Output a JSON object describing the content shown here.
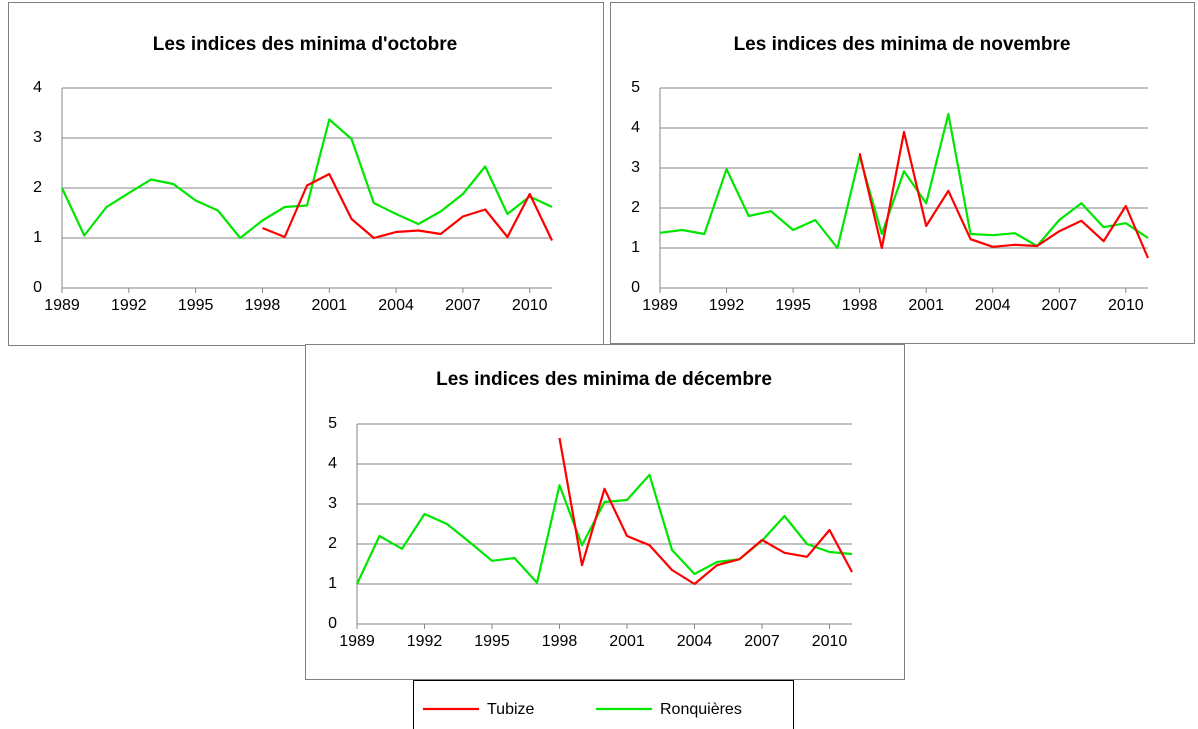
{
  "chart_data": [
    {
      "type": "line",
      "title": "Les indices des minima d'octobre",
      "x": [
        1989,
        1990,
        1991,
        1992,
        1993,
        1994,
        1995,
        1996,
        1997,
        1998,
        1999,
        2000,
        2001,
        2002,
        2003,
        2004,
        2005,
        2006,
        2007,
        2008,
        2009,
        2010,
        2011
      ],
      "xlim": [
        1989,
        2011
      ],
      "xticks": [
        1989,
        1992,
        1995,
        1998,
        2001,
        2004,
        2007,
        2010
      ],
      "ylim": [
        0,
        4
      ],
      "yticks": [
        0,
        1,
        2,
        3,
        4
      ],
      "grid": true,
      "series": [
        {
          "name": "Tubize",
          "color": "#ff0000",
          "values": [
            null,
            null,
            null,
            null,
            null,
            null,
            null,
            null,
            null,
            1.2,
            1.02,
            2.05,
            2.28,
            1.38,
            1.0,
            1.12,
            1.15,
            1.08,
            1.43,
            1.57,
            1.02,
            1.88,
            0.95
          ]
        },
        {
          "name": "Ronquières",
          "color": "#00e600",
          "values": [
            2.0,
            1.05,
            1.62,
            1.9,
            2.17,
            2.08,
            1.75,
            1.55,
            1.0,
            1.35,
            1.62,
            1.65,
            3.37,
            2.98,
            1.7,
            1.48,
            1.28,
            1.53,
            1.88,
            2.43,
            1.48,
            1.83,
            1.62
          ]
        }
      ]
    },
    {
      "type": "line",
      "title": "Les indices des minima de novembre",
      "x": [
        1989,
        1990,
        1991,
        1992,
        1993,
        1994,
        1995,
        1996,
        1997,
        1998,
        1999,
        2000,
        2001,
        2002,
        2003,
        2004,
        2005,
        2006,
        2007,
        2008,
        2009,
        2010,
        2011
      ],
      "xlim": [
        1989,
        2011
      ],
      "xticks": [
        1989,
        1992,
        1995,
        1998,
        2001,
        2004,
        2007,
        2010
      ],
      "ylim": [
        0,
        5
      ],
      "yticks": [
        0,
        1,
        2,
        3,
        4,
        5
      ],
      "grid": true,
      "series": [
        {
          "name": "Tubize",
          "color": "#ff0000",
          "values": [
            null,
            null,
            null,
            null,
            null,
            null,
            null,
            null,
            null,
            3.37,
            1.0,
            3.9,
            1.55,
            2.43,
            1.22,
            1.03,
            1.08,
            1.05,
            1.42,
            1.68,
            1.17,
            2.05,
            0.75
          ]
        },
        {
          "name": "Ronquières",
          "color": "#00e600",
          "values": [
            1.38,
            1.45,
            1.35,
            2.97,
            1.8,
            1.92,
            1.45,
            1.7,
            1.0,
            3.3,
            1.35,
            2.92,
            2.12,
            4.35,
            1.35,
            1.32,
            1.37,
            1.05,
            1.7,
            2.12,
            1.52,
            1.62,
            1.25
          ]
        }
      ]
    },
    {
      "type": "line",
      "title": "Les indices des minima de décembre",
      "x": [
        1989,
        1990,
        1991,
        1992,
        1993,
        1994,
        1995,
        1996,
        1997,
        1998,
        1999,
        2000,
        2001,
        2002,
        2003,
        2004,
        2005,
        2006,
        2007,
        2008,
        2009,
        2010,
        2011
      ],
      "xlim": [
        1989,
        2011
      ],
      "xticks": [
        1989,
        1992,
        1995,
        1998,
        2001,
        2004,
        2007,
        2010
      ],
      "ylim": [
        0,
        5
      ],
      "yticks": [
        0,
        1,
        2,
        3,
        4,
        5
      ],
      "grid": true,
      "series": [
        {
          "name": "Tubize",
          "color": "#ff0000",
          "values": [
            null,
            null,
            null,
            null,
            null,
            null,
            null,
            null,
            null,
            4.65,
            1.47,
            3.38,
            2.2,
            1.97,
            1.35,
            1.0,
            1.47,
            1.62,
            2.1,
            1.78,
            1.68,
            2.35,
            1.3
          ]
        },
        {
          "name": "Ronquières",
          "color": "#00e600",
          "values": [
            1.0,
            2.2,
            1.88,
            2.75,
            2.5,
            2.05,
            1.58,
            1.65,
            1.03,
            3.47,
            1.97,
            3.05,
            3.1,
            3.73,
            1.85,
            1.25,
            1.55,
            1.62,
            2.08,
            2.7,
            2.0,
            1.8,
            1.75
          ]
        }
      ]
    }
  ]
}
